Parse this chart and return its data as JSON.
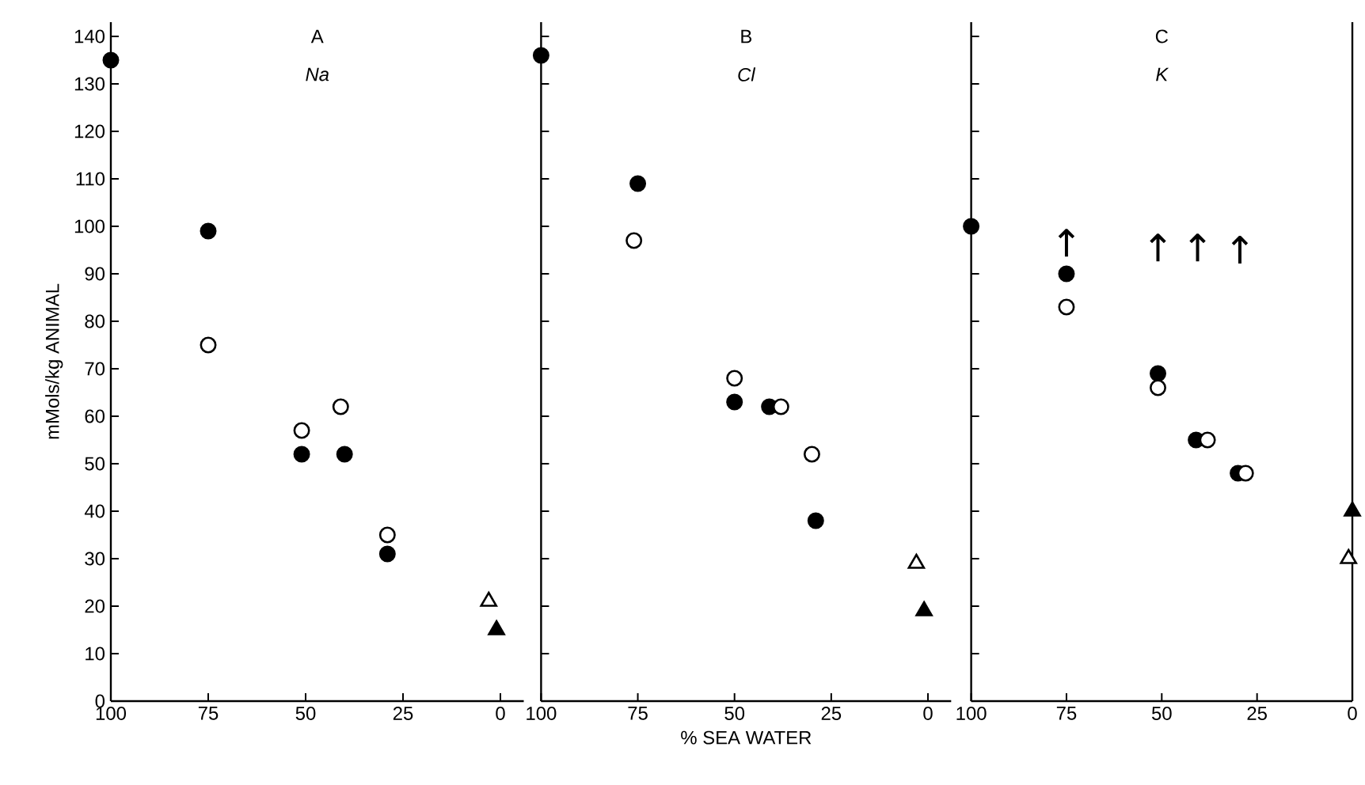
{
  "chart_data": [
    {
      "type": "scatter",
      "title": "A",
      "subtitle": "Na",
      "ylabel": "mMols/kg ANIMAL",
      "xlim": [
        100,
        -6
      ],
      "ylim": [
        0,
        143
      ],
      "xticks": [
        100,
        75,
        50,
        25,
        0
      ],
      "yticks": [
        0,
        10,
        20,
        30,
        40,
        50,
        60,
        70,
        80,
        90,
        100,
        110,
        120,
        130,
        140
      ],
      "series": [
        {
          "color": "#000000",
          "marker": "circle",
          "x": [
            100,
            75,
            51,
            40,
            29
          ],
          "values": [
            135,
            99,
            52,
            52,
            31
          ]
        },
        {
          "color": "#ffffff",
          "marker": "circle",
          "x": [
            75,
            51,
            41,
            29
          ],
          "values": [
            75,
            57,
            62,
            35
          ]
        },
        {
          "color": "#000000",
          "marker": "triangle",
          "x": [
            1
          ],
          "values": [
            15
          ]
        },
        {
          "color": "#ffffff",
          "marker": "triangle",
          "x": [
            3
          ],
          "values": [
            21
          ]
        }
      ]
    },
    {
      "type": "scatter",
      "title": "B",
      "subtitle": "Cl",
      "xlabel": "% SEA WATER",
      "xlim": [
        100,
        -6
      ],
      "ylim": [
        0,
        143
      ],
      "xticks": [
        100,
        75,
        50,
        25,
        0
      ],
      "yticks": [
        0,
        10,
        20,
        30,
        40,
        50,
        60,
        70,
        80,
        90,
        100,
        110,
        120,
        130,
        140
      ],
      "tick_labels": "x",
      "series": [
        {
          "color": "#000000",
          "marker": "circle",
          "x": [
            100,
            75,
            50,
            41,
            29
          ],
          "values": [
            136,
            109,
            63,
            62,
            38
          ]
        },
        {
          "color": "#ffffff",
          "marker": "circle",
          "x": [
            76,
            50,
            38,
            30
          ],
          "values": [
            97,
            68,
            62,
            52
          ]
        },
        {
          "color": "#000000",
          "marker": "triangle",
          "x": [
            1
          ],
          "values": [
            19
          ]
        },
        {
          "color": "#ffffff",
          "marker": "triangle",
          "x": [
            3
          ],
          "values": [
            29
          ]
        }
      ]
    },
    {
      "type": "scatter",
      "title": "C",
      "subtitle": "K",
      "xlim": [
        100,
        0
      ],
      "ylim": [
        0,
        143
      ],
      "xticks": [
        100,
        75,
        50,
        25,
        0
      ],
      "yticks": [
        0,
        10,
        20,
        30,
        40,
        50,
        60,
        70,
        80,
        90,
        100,
        110,
        120,
        130,
        140
      ],
      "tick_labels": "x",
      "ref_lines": [
        {
          "axis": "x",
          "value": 0
        }
      ],
      "annotations": [
        "↑",
        "↑",
        "↑",
        "↑"
      ],
      "series": [
        {
          "color": "#000000",
          "marker": "circle",
          "x": [
            100,
            75,
            51,
            41,
            30
          ],
          "values": [
            100,
            90,
            69,
            55,
            48
          ]
        },
        {
          "color": "#ffffff",
          "marker": "circle",
          "x": [
            75,
            51,
            38,
            28
          ],
          "values": [
            83,
            66,
            55,
            48
          ]
        },
        {
          "color": "#000000",
          "marker": "triangle",
          "x": [
            0
          ],
          "values": [
            40
          ]
        },
        {
          "color": "#ffffff",
          "marker": "triangle",
          "x": [
            1
          ],
          "values": [
            30
          ]
        }
      ]
    }
  ]
}
